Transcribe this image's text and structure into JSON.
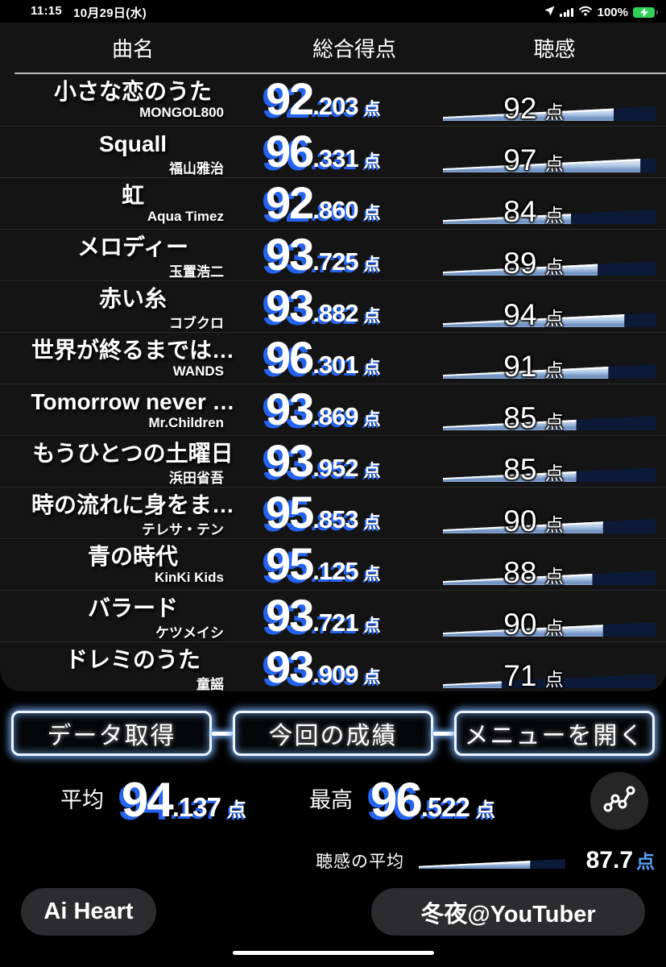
{
  "status_bar": {
    "time": "11:15",
    "date": "10月29日(水)",
    "battery_pct": "100%",
    "icons": [
      "location-arrow-icon",
      "cellular-signal-icon",
      "wifi-icon",
      "battery-charging-icon"
    ]
  },
  "table": {
    "columns": {
      "song": "曲名",
      "score": "総合得点",
      "hearing": "聴感"
    },
    "unit": "点",
    "rows": [
      {
        "title": "小さな恋のうた",
        "artist": "MONGOL800",
        "score": "92.203",
        "hearing": 92
      },
      {
        "title": "Squall",
        "artist": "福山雅治",
        "score": "96.331",
        "hearing": 97
      },
      {
        "title": "虹",
        "artist": "Aqua Timez",
        "score": "92.860",
        "hearing": 84
      },
      {
        "title": "メロディー",
        "artist": "玉置浩二",
        "score": "93.725",
        "hearing": 89
      },
      {
        "title": "赤い糸",
        "artist": "コブクロ",
        "score": "93.882",
        "hearing": 94
      },
      {
        "title": "世界が終るまでは…",
        "artist": "WANDS",
        "score": "96.301",
        "hearing": 91
      },
      {
        "title": "Tomorrow never …",
        "artist": "Mr.Children",
        "score": "93.869",
        "hearing": 85
      },
      {
        "title": "もうひとつの土曜日",
        "artist": "浜田省吾",
        "score": "93.952",
        "hearing": 85
      },
      {
        "title": "時の流れに身をま…",
        "artist": "テレサ・テン",
        "score": "95.853",
        "hearing": 90
      },
      {
        "title": "青の時代",
        "artist": "KinKi Kids",
        "score": "95.125",
        "hearing": 88
      },
      {
        "title": "バラード",
        "artist": "ケツメイシ",
        "score": "93.721",
        "hearing": 90
      },
      {
        "title": "ドレミのうた",
        "artist": "童謡",
        "score": "93.909",
        "hearing": 71
      }
    ],
    "hearing_bar_scale": {
      "min": 60,
      "max": 100
    }
  },
  "nav_buttons": [
    {
      "label": "データ取得"
    },
    {
      "label": "今回の成績"
    },
    {
      "label": "メニューを開く"
    }
  ],
  "summary": {
    "average_label": "平均",
    "average_score": "94.137",
    "best_label": "最高",
    "best_score": "96.522",
    "hearing_average_label": "聴感の平均",
    "hearing_average_score": "87.7",
    "hearing_average_fill_pct": 76,
    "unit": "点",
    "chart_button_icon": "line-chart-icon"
  },
  "footer": {
    "app_name": "Ai Heart",
    "user_name": "冬夜@YouTuber"
  },
  "colors": {
    "background": "#000000",
    "card_background": "#141414",
    "score_shadow_blue": "#2463f0",
    "bar_track_navy": "#0c1a38",
    "bar_fill_light": "#c3d6ee",
    "bar_fill_deep": "#6c8fc1",
    "unit_blue": "#55a0f5",
    "battery_green": "#30d158",
    "button_glow": "#78b4ff"
  }
}
